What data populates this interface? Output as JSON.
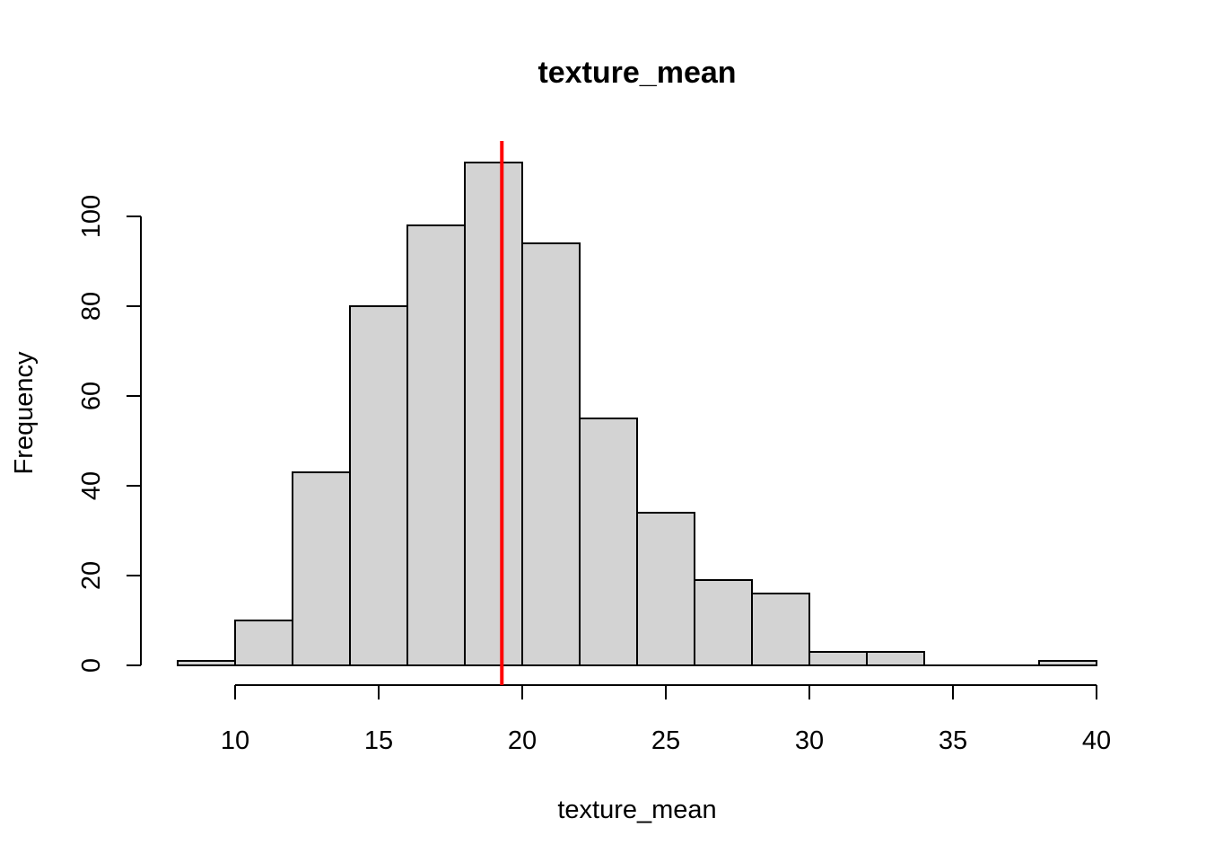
{
  "chart_data": {
    "type": "bar",
    "title": "texture_mean",
    "xlabel": "texture_mean",
    "ylabel": "Frequency",
    "bins": [
      {
        "start": 8,
        "end": 10,
        "count": 1
      },
      {
        "start": 10,
        "end": 12,
        "count": 10
      },
      {
        "start": 12,
        "end": 14,
        "count": 43
      },
      {
        "start": 14,
        "end": 16,
        "count": 80
      },
      {
        "start": 16,
        "end": 18,
        "count": 98
      },
      {
        "start": 18,
        "end": 20,
        "count": 112
      },
      {
        "start": 20,
        "end": 22,
        "count": 94
      },
      {
        "start": 22,
        "end": 24,
        "count": 55
      },
      {
        "start": 24,
        "end": 26,
        "count": 34
      },
      {
        "start": 26,
        "end": 28,
        "count": 19
      },
      {
        "start": 28,
        "end": 30,
        "count": 16
      },
      {
        "start": 30,
        "end": 32,
        "count": 3
      },
      {
        "start": 32,
        "end": 34,
        "count": 3
      },
      {
        "start": 34,
        "end": 36,
        "count": 0
      },
      {
        "start": 36,
        "end": 38,
        "count": 0
      },
      {
        "start": 38,
        "end": 40,
        "count": 1
      }
    ],
    "xticks": [
      10,
      15,
      20,
      25,
      30,
      35,
      40
    ],
    "yticks": [
      0,
      20,
      40,
      60,
      80,
      100
    ],
    "xlim": [
      8,
      40
    ],
    "ylim": [
      0,
      112
    ],
    "reference_line": {
      "x": 19.29,
      "color": "#ff0000"
    },
    "bar_color": "#d3d3d3",
    "grid": false
  }
}
